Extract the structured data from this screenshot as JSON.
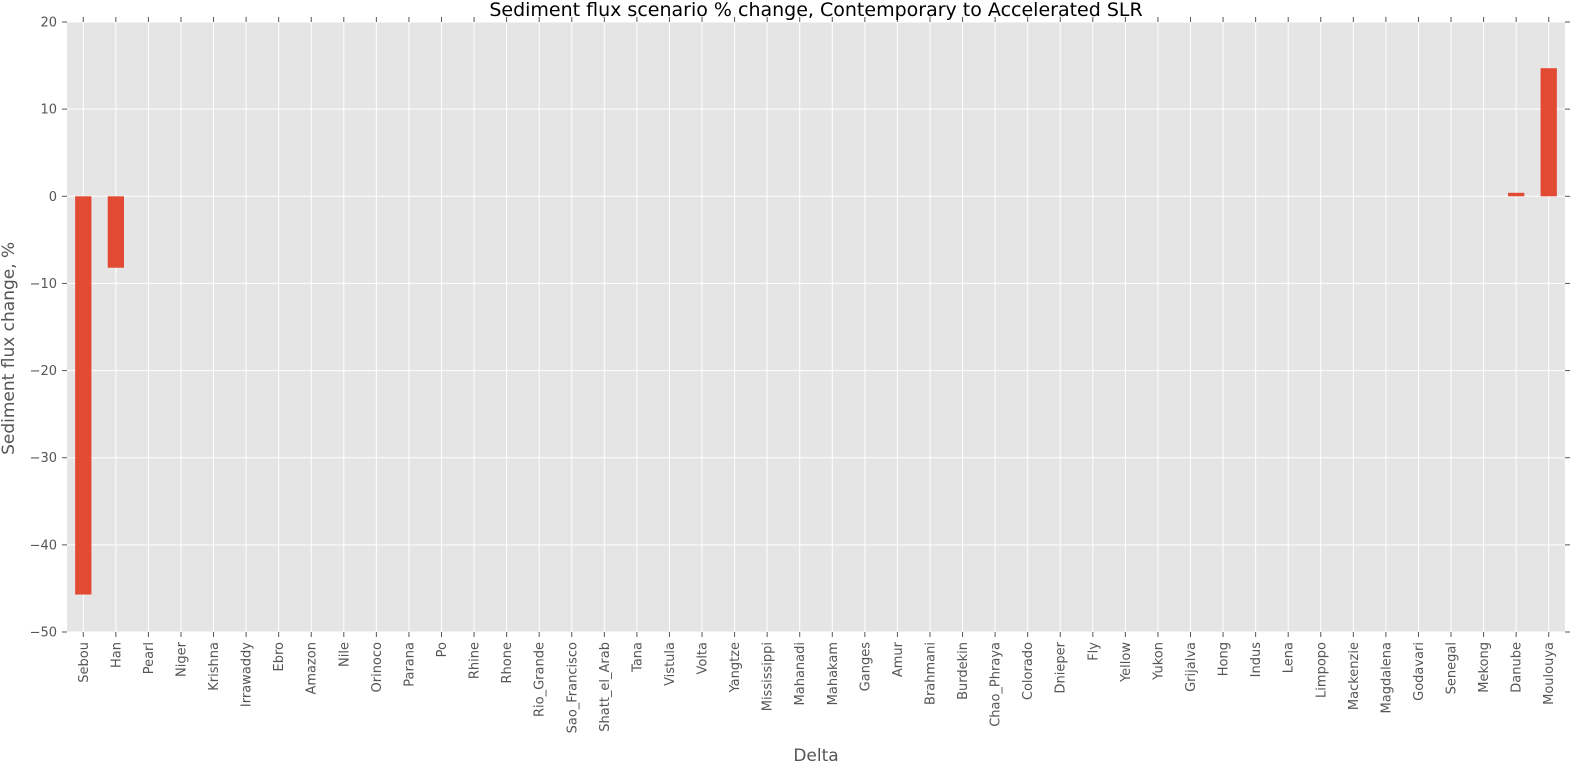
{
  "chart_data": {
    "type": "bar",
    "title": "Sediment flux scenario % change, Contemporary to Accelerated SLR",
    "xlabel": "Delta",
    "ylabel": "Sediment flux change, %",
    "ylim": [
      -50,
      20
    ],
    "yticks": [
      20,
      10,
      0,
      -10,
      -20,
      -30,
      -40,
      -50
    ],
    "ytick_labels": [
      "20",
      "10",
      "0",
      "−10",
      "−20",
      "−30",
      "−40",
      "−50"
    ],
    "grid": true,
    "bar_color": "#E24A33",
    "background_color": "#E5E5E5",
    "categories": [
      "Sebou",
      "Han",
      "Pearl",
      "Niger",
      "Krishna",
      "Irrawaddy",
      "Ebro",
      "Amazon",
      "Nile",
      "Orinoco",
      "Parana",
      "Po",
      "Rhine",
      "Rhone",
      "Rio_Grande",
      "Sao_Francisco",
      "Shatt_el_Arab",
      "Tana",
      "Vistula",
      "Volta",
      "Yangtze",
      "Mississippi",
      "Mahanadi",
      "Mahakam",
      "Ganges",
      "Amur",
      "Brahmani",
      "Burdekin",
      "Chao_Phraya",
      "Colorado",
      "Dnieper",
      "Fly",
      "Yellow",
      "Yukon",
      "Grijalva",
      "Hong",
      "Indus",
      "Lena",
      "Limpopo",
      "Mackenzie",
      "Magdalena",
      "Godavari",
      "Senegal",
      "Mekong",
      "Danube",
      "Moulouya"
    ],
    "values": [
      -45.7,
      -8.2,
      0,
      0,
      0,
      0,
      0,
      0,
      0,
      0,
      0,
      0,
      0,
      0,
      0,
      0,
      0,
      0,
      0,
      0,
      0,
      0,
      0,
      0,
      0,
      0,
      0,
      0,
      0,
      0,
      0,
      0,
      0,
      0,
      0,
      0,
      0,
      0,
      0,
      0,
      0,
      0,
      0,
      0,
      0.4,
      14.7
    ]
  }
}
